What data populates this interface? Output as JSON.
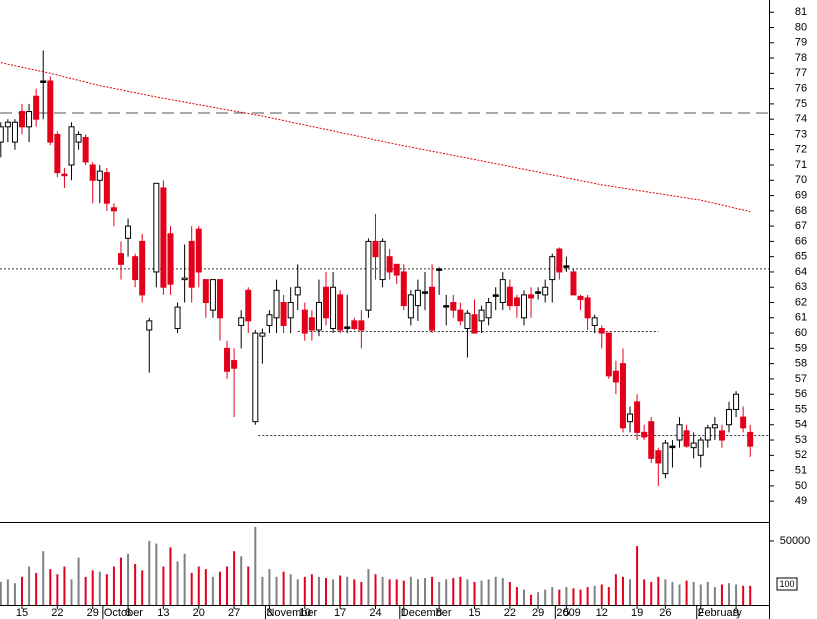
{
  "chart_data": {
    "type": "candlestick",
    "categories": [
      null,
      null,
      null,
      "15",
      null,
      null,
      null,
      null,
      "22",
      null,
      null,
      null,
      null,
      "29",
      null,
      null,
      null,
      null,
      "6",
      null,
      null,
      null,
      null,
      "13",
      null,
      null,
      null,
      null,
      "20",
      null,
      null,
      null,
      null,
      "27",
      null,
      null,
      null,
      null,
      "3",
      null,
      null,
      null,
      null,
      "10",
      null,
      null,
      null,
      null,
      "17",
      null,
      null,
      null,
      null,
      "24",
      null,
      null,
      null,
      "1",
      null,
      null,
      null,
      null,
      "8",
      null,
      null,
      null,
      null,
      "15",
      null,
      null,
      null,
      null,
      "22",
      null,
      null,
      null,
      "29",
      null,
      null,
      null,
      "5",
      null,
      null,
      null,
      null,
      "12",
      null,
      null,
      null,
      null,
      "19",
      null,
      null,
      null,
      "26",
      null,
      null,
      null,
      null,
      "2",
      null,
      null,
      null,
      null,
      "9",
      null,
      null
    ],
    "month_labels": [
      null,
      null,
      null,
      null,
      null,
      null,
      null,
      null,
      null,
      null,
      null,
      null,
      null,
      null,
      null,
      "October",
      null,
      null,
      null,
      null,
      null,
      null,
      null,
      null,
      null,
      null,
      null,
      null,
      null,
      null,
      null,
      null,
      null,
      null,
      null,
      null,
      null,
      null,
      "November",
      null,
      null,
      null,
      null,
      null,
      null,
      null,
      null,
      null,
      null,
      null,
      null,
      null,
      null,
      null,
      null,
      null,
      null,
      "December",
      null,
      null,
      null,
      null,
      null,
      null,
      null,
      null,
      null,
      null,
      null,
      null,
      null,
      null,
      null,
      null,
      null,
      null,
      null,
      null,
      null,
      "2009",
      null,
      null,
      null,
      null,
      null,
      null,
      null,
      null,
      null,
      null,
      null,
      null,
      null,
      null,
      null,
      null,
      null,
      null,
      null,
      "February",
      null,
      null,
      null,
      null,
      null,
      null,
      null
    ],
    "open": [
      72.5,
      73.5,
      72.5,
      74.5,
      73.5,
      75.5,
      76.5,
      76.5,
      73,
      70.4,
      71,
      72.5,
      72.8,
      71,
      70,
      70.5,
      68.2,
      65.2,
      66.2,
      65,
      66,
      60.2,
      64,
      69.5,
      66.5,
      60.3,
      63.5,
      66,
      66.8,
      63.5,
      61.5,
      63.5,
      59,
      58.2,
      60.5,
      62.8,
      54.2,
      59.8,
      60.5,
      61,
      62,
      61,
      62.5,
      61.5,
      61,
      60.2,
      63,
      60.3,
      62.5,
      60.4,
      60.8,
      60.8,
      61.5,
      66,
      63.5,
      65,
      64.5,
      64,
      61,
      61.8,
      62.7,
      63,
      64.2,
      61.8,
      62,
      61.5,
      60.3,
      61.2,
      60.8,
      61,
      62.5,
      62,
      63,
      62.3,
      61,
      62.5,
      62.7,
      62.5,
      63.5,
      65.5,
      64.4,
      64,
      62.4,
      62.3,
      60.5,
      60.3,
      60,
      57.5,
      58,
      54.2,
      55.5,
      53.5,
      54.2,
      52.3,
      50.8,
      52.6,
      53,
      53.6,
      52.5,
      52,
      53,
      53.8,
      53.6,
      54,
      55,
      54.5,
      53.5
    ],
    "high": [
      73.8,
      74,
      74,
      75,
      75,
      76,
      78.5,
      76.8,
      73.2,
      70.8,
      73.8,
      73.2,
      73,
      71.2,
      71,
      70.8,
      68.5,
      66,
      67.5,
      65.2,
      66.5,
      61,
      69.8,
      70,
      67,
      62,
      65.8,
      67,
      67,
      63.5,
      63.5,
      63.5,
      59.5,
      59,
      61.5,
      63,
      60.2,
      60.3,
      61.5,
      63.5,
      62.5,
      63,
      64.5,
      62,
      61.5,
      63.5,
      64,
      64,
      62.8,
      62.5,
      61,
      61.5,
      66.2,
      67.8,
      66.2,
      65.5,
      64.5,
      64.5,
      62.8,
      63.5,
      64,
      64.5,
      64.3,
      62.5,
      62.5,
      62,
      61.5,
      62.2,
      61.8,
      62.3,
      63,
      64,
      63.5,
      62.5,
      62.8,
      63,
      63,
      63.5,
      65.2,
      65.6,
      65,
      64.2,
      62.5,
      62.5,
      61.2,
      60.5,
      60,
      58.2,
      59,
      55.2,
      56,
      54,
      54.5,
      52.5,
      53,
      53,
      54.5,
      54,
      53.5,
      53.2,
      54,
      54.5,
      54,
      55.5,
      56.2,
      55.2,
      54
    ],
    "low": [
      71.5,
      72.5,
      72,
      73,
      72.5,
      73.5,
      74,
      72.3,
      70.2,
      69.5,
      70,
      72,
      71,
      68.5,
      68.5,
      68,
      67,
      63.5,
      65,
      63,
      62,
      57.4,
      63,
      62.5,
      62.5,
      60,
      62,
      62,
      63,
      61,
      61,
      59.5,
      57,
      54.5,
      59,
      60,
      54,
      58,
      60,
      60,
      60,
      60,
      61.5,
      59.5,
      59.5,
      59.8,
      60.5,
      60,
      60,
      60,
      60.2,
      59,
      61,
      63.5,
      63,
      63.5,
      63.2,
      61.5,
      60.5,
      60.8,
      61.5,
      60,
      62.5,
      60.5,
      61,
      60.5,
      58.4,
      60,
      60,
      60.5,
      61.5,
      61.5,
      61.5,
      61,
      60.5,
      61,
      62.2,
      62,
      62,
      63.5,
      64,
      62.5,
      61.5,
      60.2,
      60,
      59,
      57,
      56,
      53.5,
      53.5,
      53,
      53,
      51.5,
      50,
      50.5,
      51.2,
      52.5,
      52.5,
      51.8,
      51.2,
      52.5,
      53,
      52.5,
      53.5,
      54.5,
      53.5,
      51.9
    ],
    "close": [
      73.5,
      73.8,
      73.8,
      73.5,
      74.5,
      74,
      76.5,
      72.5,
      70.5,
      70.3,
      73.5,
      73,
      71.2,
      70,
      70.6,
      68.5,
      68,
      64.5,
      67,
      63.5,
      62.5,
      60.8,
      69.8,
      63,
      63.2,
      61.7,
      63.6,
      63,
      64,
      62,
      63.5,
      61,
      57.5,
      57.7,
      61,
      60.8,
      60,
      60,
      61.2,
      62.8,
      60.5,
      62,
      63,
      60,
      60.2,
      62,
      61,
      63,
      60.2,
      60.4,
      60.3,
      60.2,
      66,
      65,
      66,
      64,
      63.8,
      61.8,
      62.5,
      62.8,
      62.7,
      60.2,
      64.2,
      61.8,
      61.5,
      60.8,
      61.3,
      60,
      61.5,
      62,
      62.5,
      63.5,
      61.8,
      61.8,
      62.5,
      62.3,
      62.7,
      63,
      65,
      64,
      64.4,
      62.5,
      62.2,
      61,
      61,
      60,
      57.2,
      56.8,
      53.8,
      54.7,
      53.5,
      53.2,
      51.8,
      51.5,
      52.8,
      52.6,
      54,
      52.6,
      52.8,
      53,
      53.8,
      54,
      53,
      55,
      56,
      53.8,
      52.6
    ],
    "volume": [
      18000,
      20000,
      17000,
      22000,
      30000,
      25000,
      42000,
      28000,
      24000,
      30000,
      20000,
      37000,
      22000,
      27000,
      26000,
      24000,
      30000,
      37000,
      40000,
      32000,
      27000,
      50000,
      48000,
      30000,
      45000,
      34000,
      40000,
      25000,
      30000,
      28000,
      22000,
      26000,
      30000,
      42000,
      38000,
      30000,
      61000,
      22000,
      28000,
      22000,
      26000,
      24000,
      20000,
      22000,
      24000,
      22000,
      21000,
      20000,
      23000,
      22000,
      20000,
      18000,
      28000,
      24000,
      22000,
      20000,
      20000,
      19000,
      22000,
      20000,
      21000,
      22000,
      18000,
      20000,
      21000,
      22000,
      20000,
      18000,
      19000,
      20000,
      22000,
      21000,
      18000,
      14000,
      12000,
      8000,
      10000,
      12000,
      14000,
      12000,
      14000,
      13000,
      12000,
      14000,
      15000,
      16000,
      14000,
      24000,
      22000,
      20000,
      46000,
      20000,
      18000,
      22000,
      20000,
      18000,
      16000,
      19000,
      18000,
      16000,
      18000,
      14000,
      16000,
      17000,
      16000,
      15000,
      15000
    ],
    "moving_average": [
      77.7,
      77.6,
      77.5,
      77.4,
      77.3,
      77.2,
      77.1,
      77.0,
      76.89,
      76.77,
      76.66,
      76.54,
      76.43,
      76.31,
      76.2,
      76.11,
      76.01,
      75.92,
      75.82,
      75.73,
      75.64,
      75.54,
      75.45,
      75.37,
      75.28,
      75.2,
      75.12,
      75.03,
      74.95,
      74.87,
      74.78,
      74.7,
      74.62,
      74.53,
      74.45,
      74.37,
      74.28,
      74.2,
      74.1,
      74.01,
      73.91,
      73.81,
      73.71,
      73.62,
      73.52,
      73.42,
      73.33,
      73.23,
      73.13,
      73.03,
      72.94,
      72.84,
      72.74,
      72.64,
      72.55,
      72.45,
      72.35,
      72.26,
      72.17,
      72.08,
      71.99,
      71.9,
      71.81,
      71.72,
      71.63,
      71.54,
      71.45,
      71.36,
      71.27,
      71.18,
      71.09,
      71.0,
      70.91,
      70.81,
      70.72,
      70.63,
      70.54,
      70.44,
      70.35,
      70.26,
      70.16,
      70.07,
      69.98,
      69.89,
      69.79,
      69.7,
      69.63,
      69.56,
      69.49,
      69.41,
      69.34,
      69.27,
      69.2,
      69.13,
      69.06,
      68.99,
      68.91,
      68.84,
      68.77,
      68.7,
      68.59,
      68.49,
      68.38,
      68.27,
      68.16,
      68.06,
      67.95
    ],
    "reference_lines": [
      74.4,
      64.2,
      60.1,
      53.3
    ],
    "ylim": [
      47.7,
      81.8
    ],
    "yticks": [
      49,
      50,
      51,
      52,
      53,
      54,
      55,
      56,
      57,
      58,
      59,
      60,
      61,
      62,
      63,
      64,
      65,
      66,
      67,
      68,
      69,
      70,
      71,
      72,
      73,
      74,
      75,
      76,
      77,
      78,
      79,
      80,
      81
    ],
    "volume_ylim": [
      0,
      64000
    ],
    "volume_yticks": [
      50000
    ],
    "volume_unit": "100",
    "colors": {
      "up": "#ffffff",
      "down": "#e3001b",
      "flat": "#000000",
      "volume_up": "#808080",
      "volume_down": "#e3001b",
      "moving_average": "#e00000"
    }
  }
}
